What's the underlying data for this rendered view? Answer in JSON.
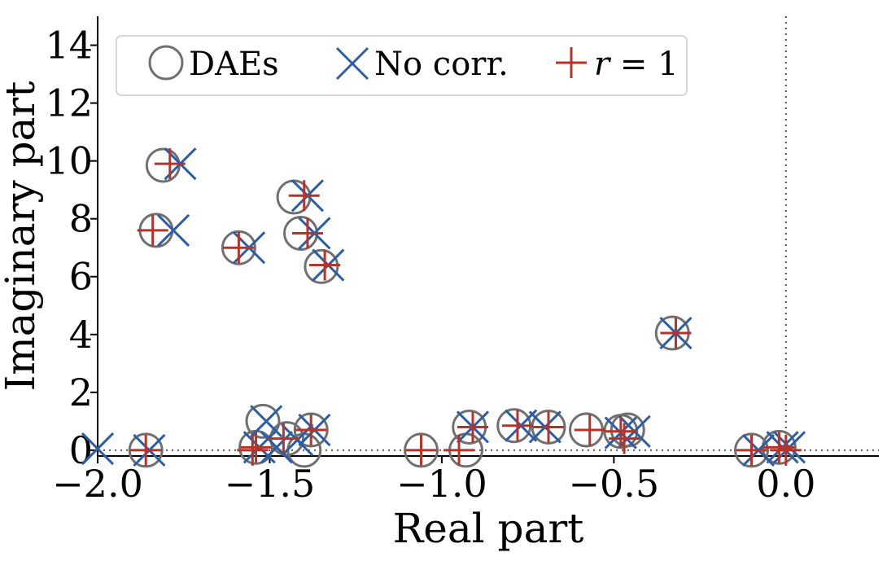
{
  "chart_data": {
    "type": "scatter",
    "title": "",
    "xlabel": "Real part",
    "ylabel": "Imaginary part",
    "xlim": [
      -2.0,
      0.27
    ],
    "ylim": [
      -0.2,
      15
    ],
    "xticks": [
      -2.0,
      -1.5,
      -1.0,
      -0.5,
      0.0
    ],
    "xtick_labels": [
      "−2.0",
      "−1.5",
      "−1.0",
      "−0.5",
      "0.0"
    ],
    "yticks": [
      0,
      2,
      4,
      6,
      8,
      10,
      12,
      14
    ],
    "ytick_labels": [
      "0",
      "2",
      "4",
      "6",
      "8",
      "10",
      "12",
      "14"
    ],
    "grid": false,
    "reference_lines": {
      "x": 0.0,
      "y": 0.0,
      "style": "dotted"
    },
    "legend": {
      "placement": "top-left",
      "entries": [
        {
          "label": "DAEs",
          "marker": "circle",
          "color": "#707070"
        },
        {
          "label": "No corr.",
          "marker": "x",
          "color": "#2a5ea8"
        },
        {
          "label_italic": "r",
          "label_rest": " = 1",
          "marker": "plus",
          "color": "#b83228"
        }
      ]
    },
    "series": [
      {
        "name": "DAEs",
        "marker": "circle",
        "color": "#707070",
        "x": [
          -1.81,
          -1.83,
          -1.59,
          -1.43,
          -1.41,
          -1.35,
          -0.33,
          -1.52,
          -1.54,
          -1.45,
          -1.38,
          -1.4,
          -1.86,
          -1.06,
          -0.93,
          -0.92,
          -0.79,
          -0.69,
          -0.58,
          -0.48,
          -0.46,
          -0.1,
          -0.02
        ],
        "y": [
          9.85,
          7.6,
          7.0,
          8.75,
          7.5,
          6.35,
          4.05,
          1.0,
          0.1,
          0.4,
          0.7,
          0.0,
          0.0,
          0.0,
          0.0,
          0.8,
          0.85,
          0.8,
          0.7,
          0.65,
          0.7,
          0.0,
          0.1
        ]
      },
      {
        "name": "No corr.",
        "marker": "x",
        "color": "#2a5ea8",
        "x": [
          -1.76,
          -1.78,
          -1.56,
          -1.39,
          -1.37,
          -1.33,
          -0.32,
          -1.51,
          -1.53,
          -1.48,
          -1.42,
          -1.37,
          -1.85,
          -2.0,
          -0.91,
          -0.77,
          -0.7,
          -0.48,
          -0.44,
          -0.08,
          -0.01,
          0.01
        ],
        "y": [
          9.9,
          7.6,
          7.0,
          8.8,
          7.5,
          6.4,
          4.05,
          1.0,
          0.1,
          0.1,
          0.35,
          0.7,
          0.0,
          0.05,
          0.8,
          0.85,
          0.8,
          0.6,
          0.65,
          0.0,
          0.1,
          0.1
        ]
      },
      {
        "name": "r = 1",
        "marker": "plus",
        "color": "#b83228",
        "x": [
          -1.79,
          -1.84,
          -1.59,
          -1.4,
          -1.39,
          -1.34,
          -0.32,
          -1.54,
          -1.55,
          -1.46,
          -1.38,
          -1.86,
          -1.06,
          -0.95,
          -0.91,
          -0.78,
          -0.69,
          -0.57,
          -0.48,
          -0.47,
          -0.1,
          -0.02,
          0.0
        ],
        "y": [
          9.9,
          7.6,
          7.0,
          8.8,
          7.5,
          6.4,
          4.05,
          0.1,
          0.0,
          0.4,
          0.7,
          0.0,
          0.0,
          0.0,
          0.8,
          0.85,
          0.8,
          0.7,
          0.65,
          0.4,
          0.0,
          0.1,
          0.0
        ]
      }
    ]
  }
}
